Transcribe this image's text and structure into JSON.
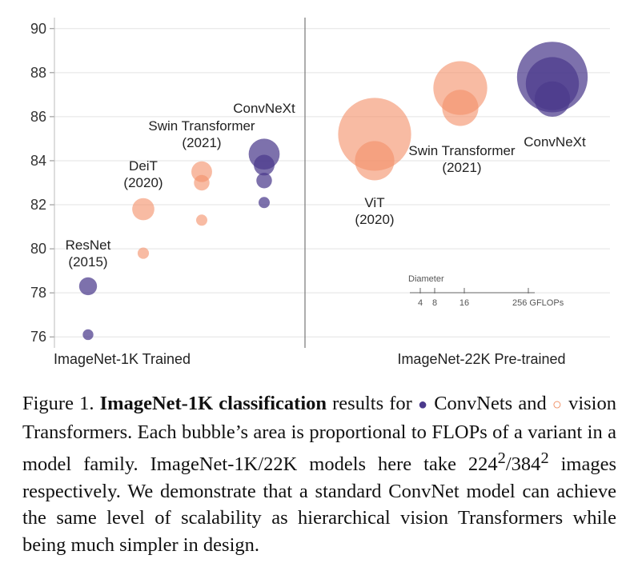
{
  "chart_data": {
    "type": "bubble-scatter",
    "y_axis": {
      "ylim": [
        75.5,
        90.5
      ],
      "ticks": [
        76,
        78,
        80,
        82,
        84,
        86,
        88,
        90
      ],
      "grid": true
    },
    "panels": [
      {
        "id": "in1k",
        "label": "ImageNet-1K Trained"
      },
      {
        "id": "in22k",
        "label": "ImageNet-22K Pre-trained"
      }
    ],
    "colors": {
      "convnet": "#4b3a8c",
      "transformer": "#f4916a",
      "grid": "#e3e3e3",
      "divider": "#777777"
    },
    "series": [
      {
        "name": "ResNet",
        "panel": "in1k",
        "family": "convnet",
        "label": [
          "ResNet",
          "(2015)"
        ],
        "points": [
          {
            "x": 0.5,
            "y": 76.1,
            "gflops": 4.1
          },
          {
            "x": 0.5,
            "y": 78.3,
            "gflops": 11.5
          }
        ]
      },
      {
        "name": "DeiT",
        "panel": "in1k",
        "family": "transformer",
        "label": [
          "DeiT",
          "(2020)"
        ],
        "points": [
          {
            "x": 1.5,
            "y": 79.8,
            "gflops": 4.6
          },
          {
            "x": 1.5,
            "y": 81.8,
            "gflops": 17.6
          }
        ]
      },
      {
        "name": "Swin Transformer",
        "panel": "in1k",
        "family": "transformer",
        "label": [
          "Swin Transformer",
          "(2021)"
        ],
        "points": [
          {
            "x": 2.5,
            "y": 81.3,
            "gflops": 4.5
          },
          {
            "x": 2.5,
            "y": 83.0,
            "gflops": 8.7
          },
          {
            "x": 2.5,
            "y": 83.5,
            "gflops": 15.4
          }
        ]
      },
      {
        "name": "ConvNeXt",
        "panel": "in1k",
        "family": "convnet",
        "label": [
          "ConvNeXt"
        ],
        "points": [
          {
            "x": 3.5,
            "y": 82.1,
            "gflops": 4.5
          },
          {
            "x": 3.5,
            "y": 83.1,
            "gflops": 8.7
          },
          {
            "x": 3.5,
            "y": 83.8,
            "gflops": 15.4
          },
          {
            "x": 3.5,
            "y": 84.3,
            "gflops": 34.4
          }
        ]
      },
      {
        "name": "ViT",
        "panel": "in22k",
        "family": "transformer",
        "label": [
          "ViT",
          "(2020)"
        ],
        "points": [
          {
            "x": 0.5,
            "y": 85.2,
            "gflops": 191
          },
          {
            "x": 0.5,
            "y": 84.0,
            "gflops": 55.5
          }
        ]
      },
      {
        "name": "Swin Transformer",
        "panel": "in22k",
        "family": "transformer",
        "label": [
          "Swin Transformer",
          "(2021)"
        ],
        "points": [
          {
            "x": 1.5,
            "y": 87.3,
            "gflops": 104
          },
          {
            "x": 1.5,
            "y": 86.4,
            "gflops": 47.0
          }
        ]
      },
      {
        "name": "ConvNeXt",
        "panel": "in22k",
        "family": "convnet",
        "label": [
          "ConvNeXt"
        ],
        "points": [
          {
            "x": 2.5,
            "y": 87.8,
            "gflops": 179
          },
          {
            "x": 2.5,
            "y": 87.5,
            "gflops": 101
          },
          {
            "x": 2.5,
            "y": 86.8,
            "gflops": 45.0
          }
        ]
      }
    ],
    "size_legend": {
      "title": "Diameter",
      "ticks": [
        "4",
        "8",
        "16",
        "256 GFLOPs"
      ]
    }
  },
  "caption": {
    "prefix": "Figure 1. ",
    "bold": "ImageNet-1K classification",
    "part1": " results for ",
    "convnets": "ConvNets and",
    "vits": "vision Transformers.",
    "part2": " Each bubble’s area is proportional to FLOPs of a variant in a model family. ImageNet-1K/22K models here take 224",
    "sup1": "2",
    "slash": "/384",
    "sup2": "2",
    "part3": " images respectively. We demonstrate that a standard ConvNet model can achieve the same level of scalability as hierarchical vision Transformers while being much simpler in design.",
    "dot_convnet": "●",
    "dot_vit": "○"
  }
}
